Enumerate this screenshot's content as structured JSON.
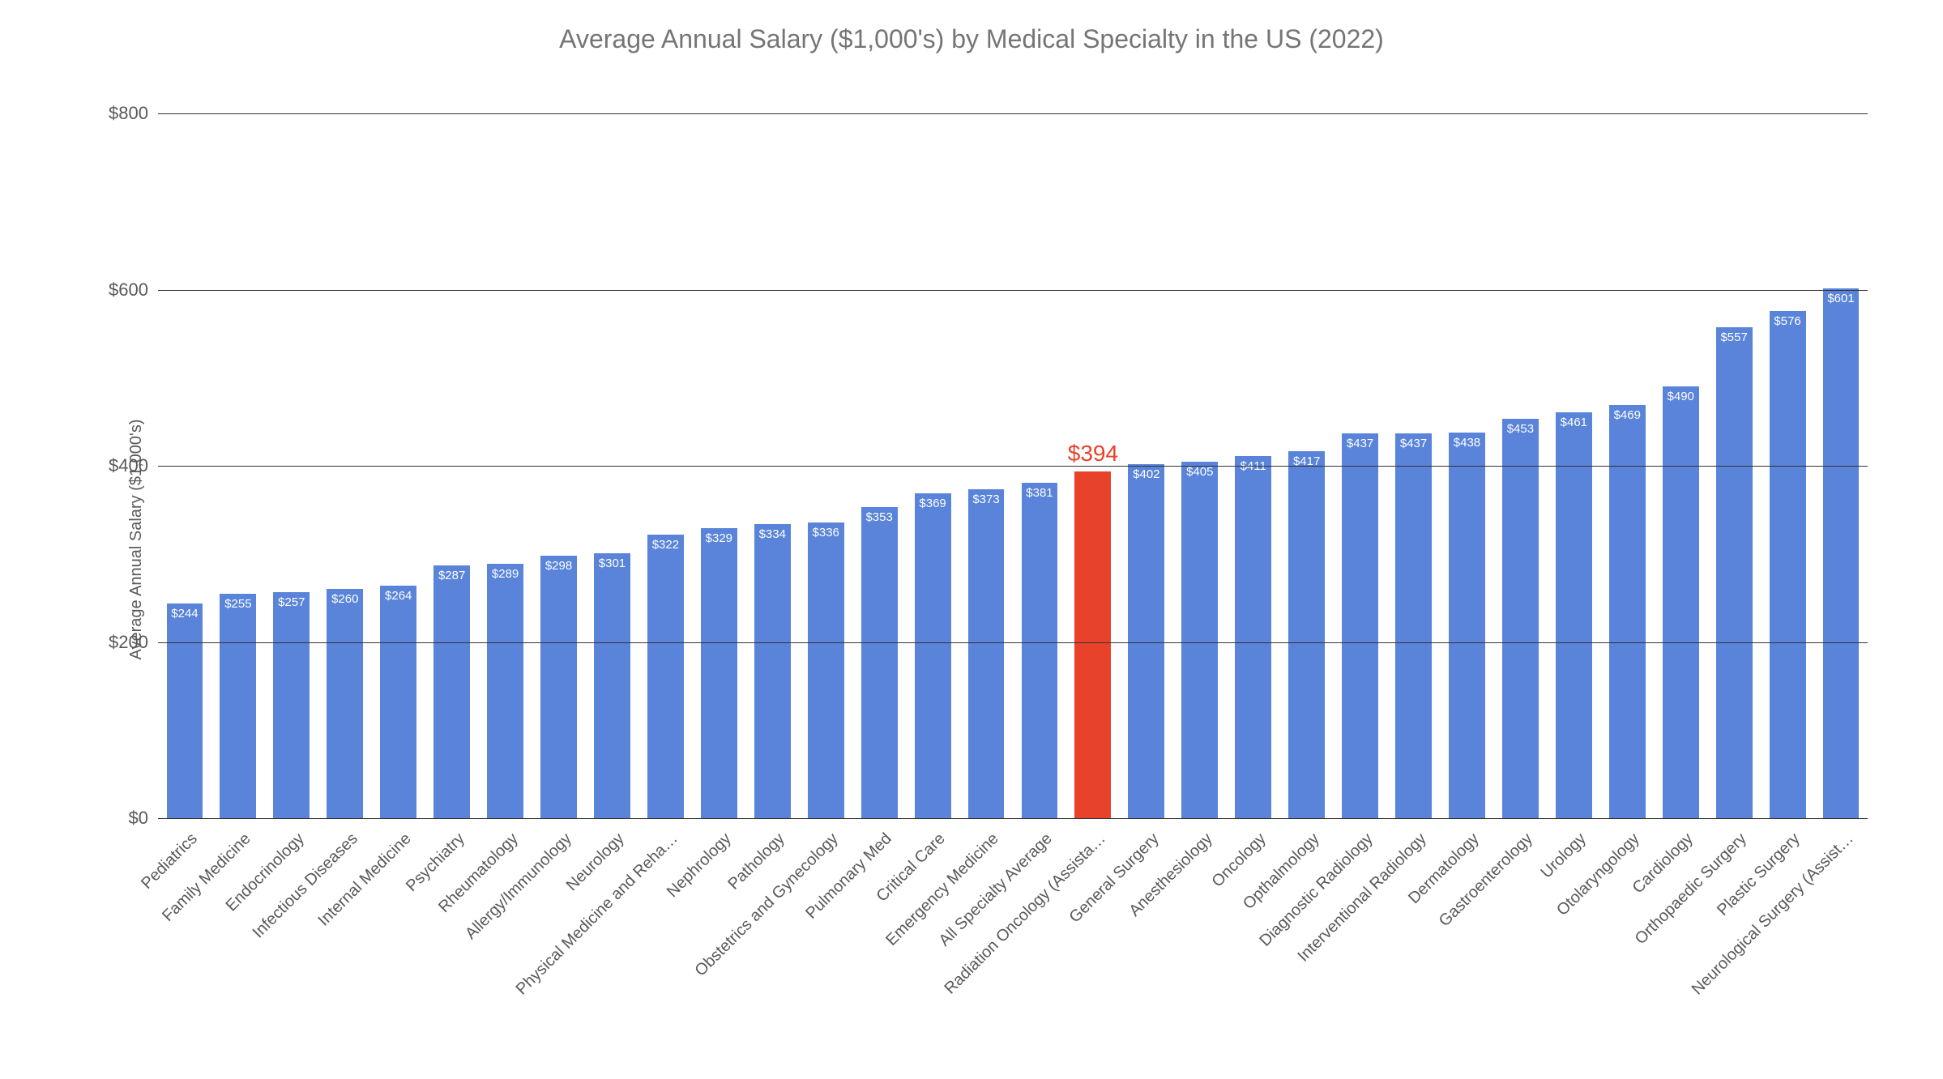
{
  "chart": {
    "type": "bar",
    "title": "Average Annual Salary ($1,000's) by Medical Specialty in the US (2022)",
    "title_fontsize": 32,
    "title_color": "#757575",
    "ylabel": "Average Annual Salary ($1,000's)",
    "ylabel_fontsize": 20,
    "ylabel_color": "#595959",
    "background_color": "#ffffff",
    "grid_color": "#333333",
    "ylim": [
      0,
      800
    ],
    "yticks": [
      0,
      200,
      400,
      600,
      800
    ],
    "ytick_labels": [
      "$0",
      "$200",
      "$400",
      "$600",
      "$800"
    ],
    "ytick_fontsize": 22,
    "ytick_color": "#595959",
    "xlabel_fontsize": 20,
    "xlabel_color": "#595959",
    "xlabel_rotation": -45,
    "bar_width_ratio": 0.68,
    "default_bar_color": "#5984d9",
    "highlight_bar_color": "#e8422a",
    "value_label_fontsize": 15,
    "value_label_color_inside": "#ffffff",
    "highlight_value_fontsize": 28,
    "categories": [
      "Pediatrics",
      "Family Medicine",
      "Endocrinology",
      "Infectious Diseases",
      "Internal Medicine",
      "Psychiatry",
      "Rheumatology",
      "Allergy/Immunology",
      "Neurology",
      "Physical Medicine and Reha…",
      "Nephrology",
      "Pathology",
      "Obstetrics and Gynecology",
      "Pulmonary Med",
      "Critical Care",
      "Emergency Medicine",
      "All Specialty Average",
      "Radiation Oncology (Assista…",
      "General Surgery",
      "Anesthesiology",
      "Oncology",
      "Opthalmology",
      "Diagnostic Radiology",
      "Interventional Radiology",
      "Dermatology",
      "Gastroenterology",
      "Urology",
      "Otolaryngology",
      "Cardiology",
      "Orthopaedic Surgery",
      "Plastic Surgery",
      "Neurological Surgery (Assist…"
    ],
    "values": [
      244,
      255,
      257,
      260,
      264,
      287,
      289,
      298,
      301,
      322,
      329,
      334,
      336,
      353,
      369,
      373,
      381,
      394,
      402,
      405,
      411,
      417,
      437,
      437,
      438,
      453,
      461,
      469,
      490,
      557,
      576,
      601
    ],
    "value_labels": [
      "$244",
      "$255",
      "$257",
      "$260",
      "$264",
      "$287",
      "$289",
      "$298",
      "$301",
      "$322",
      "$329",
      "$334",
      "$336",
      "$353",
      "$369",
      "$373",
      "$381",
      "$394",
      "$402",
      "$405",
      "$411",
      "$417",
      "$437",
      "$437",
      "$438",
      "$453",
      "$461",
      "$469",
      "$490",
      "$557",
      "$576",
      "$601"
    ],
    "highlight_index": 17
  }
}
